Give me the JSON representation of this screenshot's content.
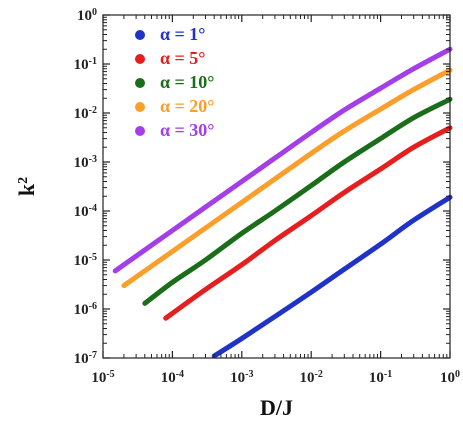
{
  "chart_data": {
    "type": "line",
    "xlabel": "D/J",
    "ylabel_base": "k",
    "ylabel_exp": "2",
    "x_scale": "log",
    "y_scale": "log",
    "xlim": [
      1e-05,
      1
    ],
    "ylim": [
      1e-07,
      1
    ],
    "grid": false,
    "legend_position": "top-left",
    "x_ticks": [
      {
        "base": "10",
        "exp": "-5",
        "value": 1e-05
      },
      {
        "base": "10",
        "exp": "-4",
        "value": 0.0001
      },
      {
        "base": "10",
        "exp": "-3",
        "value": 0.001
      },
      {
        "base": "10",
        "exp": "-2",
        "value": 0.01
      },
      {
        "base": "10",
        "exp": "-1",
        "value": 0.1
      },
      {
        "base": "10",
        "exp": "0",
        "value": 1
      }
    ],
    "y_ticks": [
      {
        "base": "10",
        "exp": "-7",
        "value": 1e-07
      },
      {
        "base": "10",
        "exp": "-6",
        "value": 1e-06
      },
      {
        "base": "10",
        "exp": "-5",
        "value": 1e-05
      },
      {
        "base": "10",
        "exp": "-4",
        "value": 0.0001
      },
      {
        "base": "10",
        "exp": "-3",
        "value": 0.001
      },
      {
        "base": "10",
        "exp": "-2",
        "value": 0.01
      },
      {
        "base": "10",
        "exp": "-1",
        "value": 0.1
      },
      {
        "base": "10",
        "exp": "0",
        "value": 1
      }
    ],
    "series": [
      {
        "name": "α = 1°",
        "color": "#1f33c8",
        "points": [
          [
            0.0004,
            1.1e-07
          ],
          [
            0.001,
            2.5e-07
          ],
          [
            0.003,
            7e-07
          ],
          [
            0.01,
            2.2e-06
          ],
          [
            0.03,
            6.5e-06
          ],
          [
            0.1,
            2.1e-05
          ],
          [
            0.3,
            6.5e-05
          ],
          [
            1,
            0.00019
          ]
        ]
      },
      {
        "name": "α = 5°",
        "color": "#e61e1e",
        "points": [
          [
            8e-05,
            6.5e-07
          ],
          [
            0.0003,
            2.5e-06
          ],
          [
            0.001,
            8e-06
          ],
          [
            0.003,
            2.5e-05
          ],
          [
            0.01,
            8e-05
          ],
          [
            0.03,
            0.00024
          ],
          [
            0.1,
            0.00072
          ],
          [
            0.3,
            0.002
          ],
          [
            1,
            0.005
          ]
        ]
      },
      {
        "name": "α = 10°",
        "color": "#1a6e1a",
        "points": [
          [
            4e-05,
            1.3e-06
          ],
          [
            0.0001,
            3.5e-06
          ],
          [
            0.0003,
            1e-05
          ],
          [
            0.001,
            3.5e-05
          ],
          [
            0.003,
            0.0001
          ],
          [
            0.01,
            0.00033
          ],
          [
            0.03,
            0.001
          ],
          [
            0.1,
            0.003
          ],
          [
            0.3,
            0.008
          ],
          [
            1,
            0.019
          ]
        ]
      },
      {
        "name": "α = 20°",
        "color": "#fb9e2a",
        "points": [
          [
            2e-05,
            3e-06
          ],
          [
            0.0001,
            1.5e-05
          ],
          [
            0.0003,
            4.5e-05
          ],
          [
            0.001,
            0.00015
          ],
          [
            0.003,
            0.00045
          ],
          [
            0.01,
            0.0015
          ],
          [
            0.03,
            0.0043
          ],
          [
            0.1,
            0.012
          ],
          [
            0.3,
            0.03
          ],
          [
            1,
            0.075
          ]
        ]
      },
      {
        "name": "α = 30°",
        "color": "#a43ee8",
        "points": [
          [
            1.5e-05,
            6e-06
          ],
          [
            0.0001,
            4e-05
          ],
          [
            0.0003,
            0.00012
          ],
          [
            0.001,
            0.0004
          ],
          [
            0.003,
            0.0012
          ],
          [
            0.01,
            0.004
          ],
          [
            0.03,
            0.0115
          ],
          [
            0.1,
            0.032
          ],
          [
            0.3,
            0.08
          ],
          [
            1,
            0.2
          ]
        ]
      }
    ]
  }
}
